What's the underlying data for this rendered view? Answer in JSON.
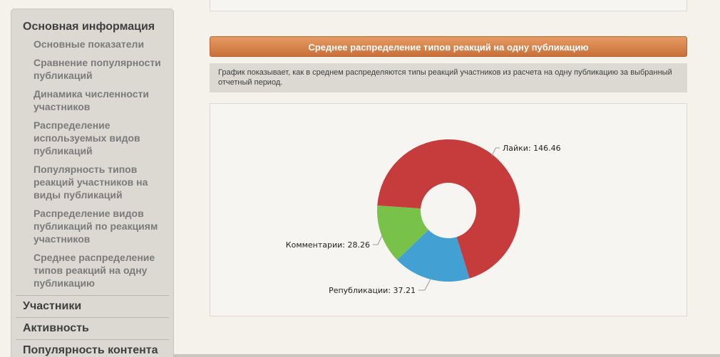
{
  "sidebar": {
    "section_main": "Основная информация",
    "items": [
      "Основные показатели",
      "Сравнение популярности публикаций",
      "Динамика численности участников",
      "Распределение используемых видов публикаций",
      "Популярность типов реакций участников на виды публикаций",
      "Распределение видов публикаций по реакциям участников",
      "Среднее распределение типов реакций на одну публикацию"
    ],
    "section_participants": "Участники",
    "section_activity": "Активность",
    "section_popularity": "Популярность контента"
  },
  "main": {
    "header": "Среднее распределение типов реакций на одну публикацию",
    "description": "График показывает, как в среднем распределяются типы реакций участников из расчета на одну публикацию за выбранный отчетный период."
  },
  "chart_data": {
    "type": "pie",
    "donut": true,
    "title": "",
    "slices": [
      {
        "name": "Лайки",
        "value": 146.46,
        "color": "#c63b3b",
        "label": "Лайки: 146.46"
      },
      {
        "name": "Республикации",
        "value": 37.21,
        "color": "#43a0d3",
        "label": "Републикации: 37.21"
      },
      {
        "name": "Комментарии",
        "value": 28.26,
        "color": "#78c24a",
        "label": "Комментарии: 28.26"
      }
    ]
  }
}
